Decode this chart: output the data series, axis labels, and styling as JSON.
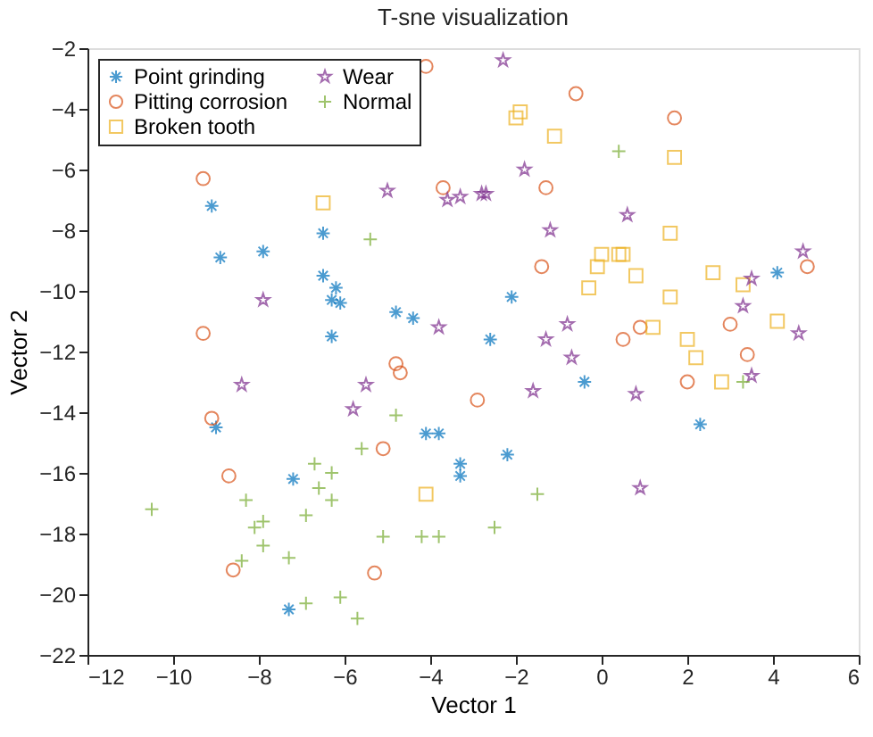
{
  "chart_data": {
    "type": "scatter",
    "title": "T-sne visualization",
    "xlabel": "Vector 1",
    "ylabel": "Vector 2",
    "xlim": [
      -12,
      6
    ],
    "ylim": [
      -22,
      -2
    ],
    "xticks": [
      -12,
      -10,
      -8,
      -6,
      -4,
      -2,
      0,
      2,
      4,
      6
    ],
    "yticks": [
      -22,
      -20,
      -18,
      -16,
      -14,
      -12,
      -10,
      -8,
      -6,
      -4,
      -2
    ],
    "grid": false,
    "legend": "top left",
    "series": [
      {
        "name": "Point grinding",
        "color": "#0072bd",
        "marker": "cross",
        "x": [
          -9.1,
          -6.5,
          -8.9,
          -7.9,
          -6.5,
          -6.2,
          -6.3,
          -6.1,
          -4.8,
          -4.4,
          -6.3,
          -2.1,
          -2.6,
          -0.4,
          2.3,
          -2.2,
          4.1,
          -9.0,
          -4.1,
          -3.8,
          -3.3,
          -3.3,
          -7.2,
          -7.3
        ],
        "values": [
          -7.2,
          -8.1,
          -8.9,
          -8.7,
          -9.5,
          -9.9,
          -10.3,
          -10.4,
          -10.7,
          -10.9,
          -11.5,
          -10.2,
          -11.6,
          -13.0,
          -14.4,
          -15.4,
          -9.4,
          -14.5,
          -14.7,
          -14.7,
          -15.7,
          -16.1,
          -16.2,
          -20.5
        ]
      },
      {
        "name": "Pitting corrosion",
        "color": "#d95319",
        "marker": "circle",
        "x": [
          -4.1,
          -9.3,
          -3.7,
          -9.3,
          -4.8,
          -4.7,
          -0.6,
          1.7,
          -1.3,
          -1.4,
          4.8,
          3.0,
          0.9,
          0.5,
          3.4,
          2.0,
          -2.9,
          -9.1,
          -5.1,
          -8.7,
          -8.6,
          -5.3
        ],
        "values": [
          -2.6,
          -6.3,
          -6.6,
          -11.4,
          -12.4,
          -12.7,
          -3.5,
          -4.3,
          -6.6,
          -9.2,
          -9.2,
          -11.1,
          -11.2,
          -11.6,
          -12.1,
          -13.0,
          -13.6,
          -14.2,
          -15.2,
          -16.1,
          -19.2,
          -19.3
        ]
      },
      {
        "name": "Broken tooth",
        "color": "#edb120",
        "marker": "square",
        "x": [
          -6.5,
          -1.9,
          -2.0,
          -1.1,
          1.7,
          1.6,
          0.0,
          0.4,
          0.5,
          -0.1,
          0.8,
          -0.3,
          1.6,
          2.6,
          3.3,
          4.1,
          1.2,
          2.0,
          2.2,
          2.8,
          -4.1
        ],
        "values": [
          -7.1,
          -4.1,
          -4.3,
          -4.9,
          -5.6,
          -8.1,
          -8.8,
          -8.8,
          -8.8,
          -9.2,
          -9.5,
          -9.9,
          -10.2,
          -9.4,
          -9.8,
          -11.0,
          -11.2,
          -11.6,
          -12.2,
          -13.0,
          -16.7
        ]
      },
      {
        "name": "Wear",
        "color": "#7e2f8e",
        "marker": "star",
        "x": [
          -5.0,
          -3.6,
          -3.3,
          -2.8,
          -7.9,
          -3.8,
          -2.3,
          -1.8,
          -2.7,
          0.6,
          -1.2,
          3.5,
          4.7,
          3.3,
          4.6,
          -0.8,
          -1.3,
          -0.7,
          3.5,
          -1.6,
          0.8,
          0.9,
          -8.4,
          -5.5,
          -5.8
        ],
        "values": [
          -6.7,
          -7.0,
          -6.9,
          -6.8,
          -10.3,
          -11.2,
          -2.4,
          -6.0,
          -6.8,
          -7.5,
          -8.0,
          -9.6,
          -8.7,
          -10.5,
          -11.4,
          -11.1,
          -11.6,
          -12.2,
          -12.8,
          -13.3,
          -13.4,
          -16.5,
          -13.1,
          -13.1,
          -13.9
        ]
      },
      {
        "name": "Normal",
        "color": "#77ac30",
        "marker": "plus",
        "x": [
          -5.4,
          0.4,
          3.3,
          -1.5,
          -2.5,
          -4.8,
          -5.6,
          -6.7,
          -6.3,
          -6.6,
          -6.3,
          -8.3,
          -10.5,
          -6.9,
          -7.9,
          -8.1,
          -7.9,
          -5.1,
          -4.2,
          -3.8,
          -7.3,
          -8.4,
          -6.9,
          -6.1,
          -5.7
        ],
        "values": [
          -8.3,
          -5.4,
          -13.0,
          -16.7,
          -17.8,
          -14.1,
          -15.2,
          -15.7,
          -16.0,
          -16.5,
          -16.9,
          -16.9,
          -17.2,
          -17.4,
          -17.6,
          -17.8,
          -18.4,
          -18.1,
          -18.1,
          -18.1,
          -18.8,
          -18.9,
          -20.3,
          -20.1,
          -20.8
        ]
      }
    ]
  }
}
